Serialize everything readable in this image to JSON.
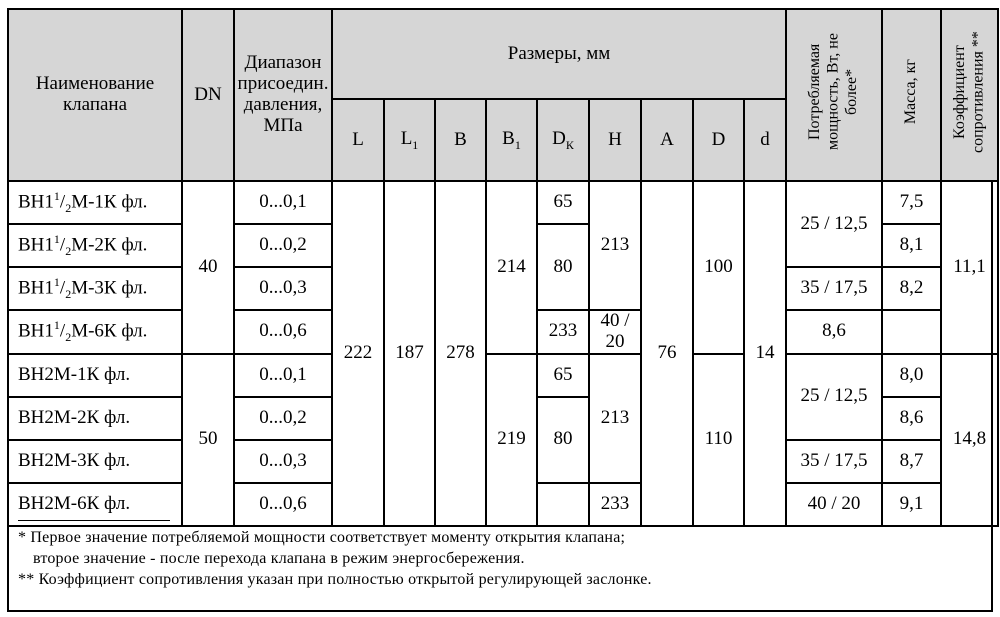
{
  "header": {
    "name": "Наименование клапана",
    "dn": "DN",
    "pressure": "Диапазон присоедин. давления, МПа",
    "sizes": "Размеры, мм",
    "power": "Потребляемая мощность, Вт, не более*",
    "mass": "Масса, кг",
    "coef": "Коэффициент сопротивления **",
    "cols": {
      "L": "L",
      "L1": "L",
      "L1_sub": "1",
      "B": "B",
      "B1": "B",
      "B1_sub": "1",
      "Dk": "D",
      "Dk_sub": "К",
      "H": "H",
      "A": "A",
      "D": "D",
      "d": "d"
    }
  },
  "rows": [
    {
      "name_pre": "ВН1",
      "name_sup": "1",
      "name_slash": "/",
      "name_sub": "2",
      "name_post": "М-1К фл.",
      "pressure": "0...0,1",
      "mass": "7,5"
    },
    {
      "name_pre": "ВН1",
      "name_sup": "1",
      "name_slash": "/",
      "name_sub": "2",
      "name_post": "М-2К фл.",
      "pressure": "0...0,2",
      "mass": "8,1"
    },
    {
      "name_pre": "ВН1",
      "name_sup": "1",
      "name_slash": "/",
      "name_sub": "2",
      "name_post": "М-3К фл.",
      "pressure": "0...0,3",
      "mass": "8,2"
    },
    {
      "name_pre": "ВН1",
      "name_sup": "1",
      "name_slash": "/",
      "name_sub": "2",
      "name_post": "М-6К фл.",
      "pressure": "0...0,6",
      "mass": "8,6"
    },
    {
      "name": "ВН2М-1К фл.",
      "pressure": "0...0,1",
      "mass": "8,0"
    },
    {
      "name": "ВН2М-2К фл.",
      "pressure": "0...0,2",
      "mass": "8,6"
    },
    {
      "name": "ВН2М-3К фл.",
      "pressure": "0...0,3",
      "mass": "8,7"
    },
    {
      "name": "ВН2М-6К фл.",
      "pressure": "0...0,6",
      "mass": "9,1"
    }
  ],
  "merged": {
    "dn_a": "40",
    "dn_b": "50",
    "L": "222",
    "L1": "187",
    "B": "278",
    "B1_a": "214",
    "B1_b": "219",
    "Dk_1": "65",
    "Dk_2": "80",
    "Dk_3": "65",
    "Dk_4": "80",
    "H_1": "213",
    "H_2": "233",
    "H_3": "213",
    "H_4": "233",
    "A": "76",
    "D_a": "100",
    "D_b": "110",
    "d": "14",
    "power_1": "25 / 12,5",
    "power_2": "35 / 17,5",
    "power_3": "40 / 20",
    "power_4": "25 / 12,5",
    "power_5": "35 / 17,5",
    "power_6": "40 / 20",
    "coef_a": "11,1",
    "coef_b": "14,8"
  },
  "notes": [
    "* Первое значение потребляемой мощности соответствует моменту открытия клапана;",
    "второе значение - после перехода клапана в режим энергосбережения.",
    "** Коэффициент сопротивления указан при полностью открытой регулирующей заслонке."
  ]
}
